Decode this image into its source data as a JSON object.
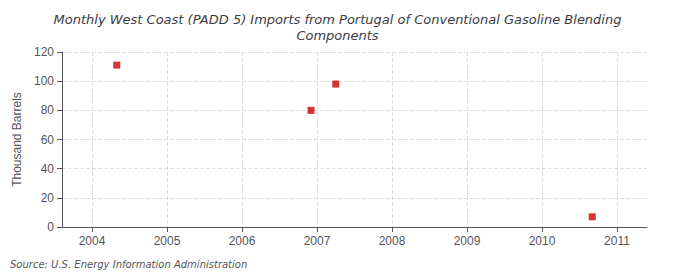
{
  "chart_data": {
    "type": "scatter",
    "title": "Monthly West Coast (PADD 5) Imports from Portugal of Conventional Gasoline Blending\nComponents",
    "ylabel": "Thousand Barrels",
    "source": "Source: U.S. Energy Information Administration",
    "x": [
      2004.33,
      2006.92,
      2007.25,
      2010.67
    ],
    "values": [
      111,
      80,
      98,
      7
    ],
    "color": "#cc0000",
    "marker": "square",
    "xlim": [
      2003.6,
      2011.4
    ],
    "xticks": [
      2004,
      2005,
      2006,
      2007,
      2008,
      2009,
      2010,
      2011
    ],
    "ylim": [
      0,
      120
    ],
    "yticks": [
      0,
      20,
      40,
      60,
      80,
      100,
      120
    ],
    "grid": true
  }
}
